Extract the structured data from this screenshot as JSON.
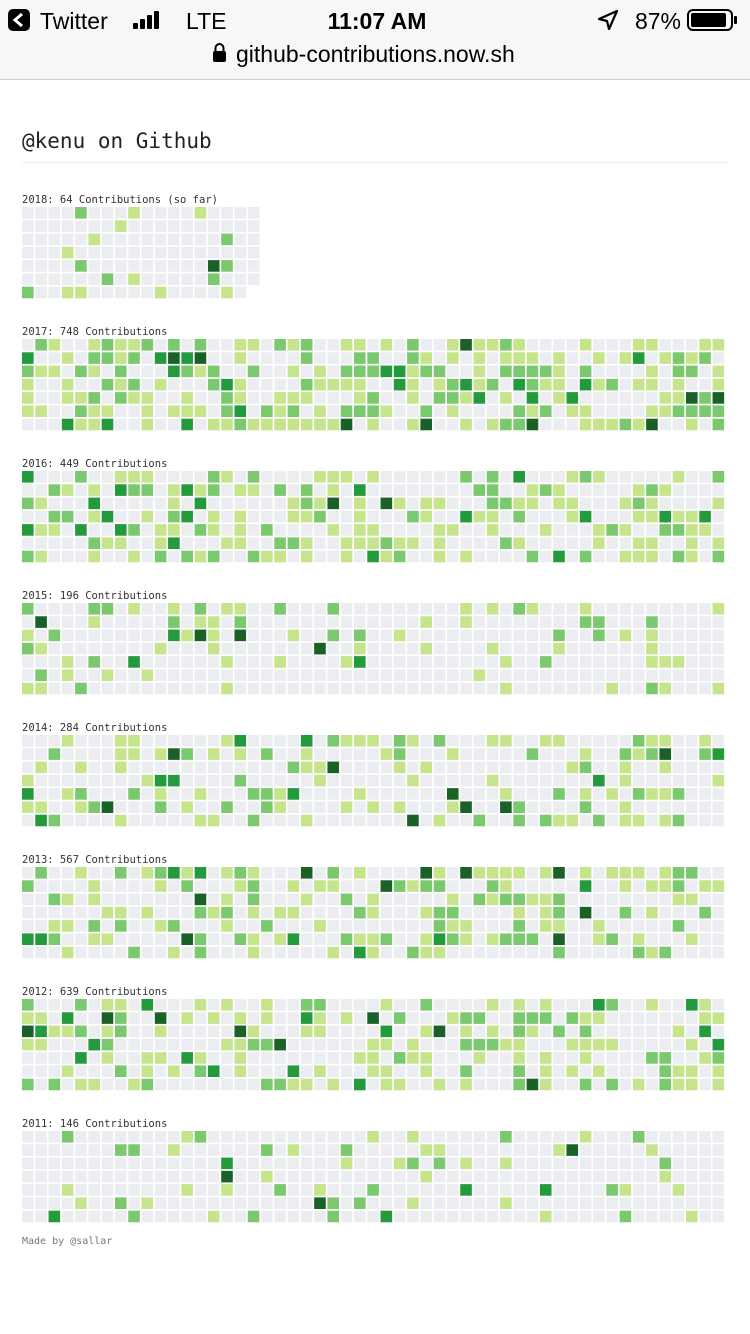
{
  "status_bar": {
    "app": "Twitter",
    "network": "LTE",
    "time": "11:07 AM",
    "battery": "87%"
  },
  "address_bar": {
    "url": "github-contributions.now.sh"
  },
  "page": {
    "title": "@kenu on Github",
    "years": [
      {
        "label": "2018: 64 Contributions (so far)"
      },
      {
        "label": "2017: 748 Contributions"
      },
      {
        "label": "2016: 449 Contributions"
      },
      {
        "label": "2015: 196 Contributions"
      },
      {
        "label": "2014: 284 Contributions"
      },
      {
        "label": "2013: 567 Contributions"
      },
      {
        "label": "2012: 639 Contributions"
      },
      {
        "label": "2011: 146 Contributions"
      }
    ],
    "footer": "Made by @sallar"
  }
}
